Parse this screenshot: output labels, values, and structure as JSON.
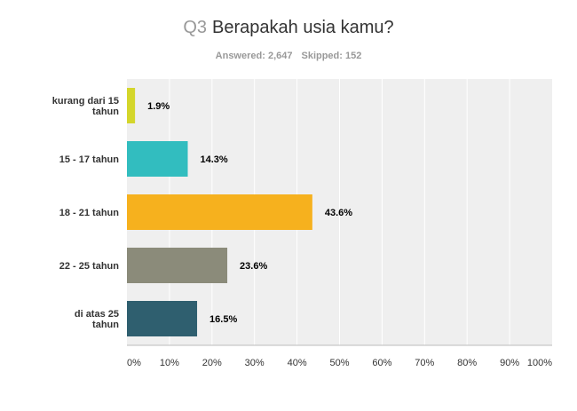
{
  "header": {
    "question_number": "Q3",
    "question_text": "Berapakah usia kamu?",
    "answered": "Answered: 2,647",
    "skipped": "Skipped: 152"
  },
  "chart_data": {
    "type": "bar",
    "orientation": "horizontal",
    "title": "Berapakah usia kamu?",
    "categories": [
      [
        "kurang dari 15",
        "tahun"
      ],
      [
        "15 - 17 tahun"
      ],
      [
        "18 - 21 tahun"
      ],
      [
        "22 - 25 tahun"
      ],
      [
        "di atas 25",
        "tahun"
      ]
    ],
    "values": [
      1.9,
      14.3,
      43.6,
      23.6,
      16.5
    ],
    "value_labels": [
      "1.9%",
      "14.3%",
      "43.6%",
      "23.6%",
      "16.5%"
    ],
    "colors": [
      "#d4d62b",
      "#32bdbf",
      "#f6b11e",
      "#8b8b7a",
      "#2f5f6f"
    ],
    "xlim": [
      0,
      100
    ],
    "ticks": [
      "0%",
      "10%",
      "20%",
      "30%",
      "40%",
      "50%",
      "60%",
      "70%",
      "80%",
      "90%",
      "100%"
    ],
    "grid": true,
    "background": "#efefef"
  }
}
